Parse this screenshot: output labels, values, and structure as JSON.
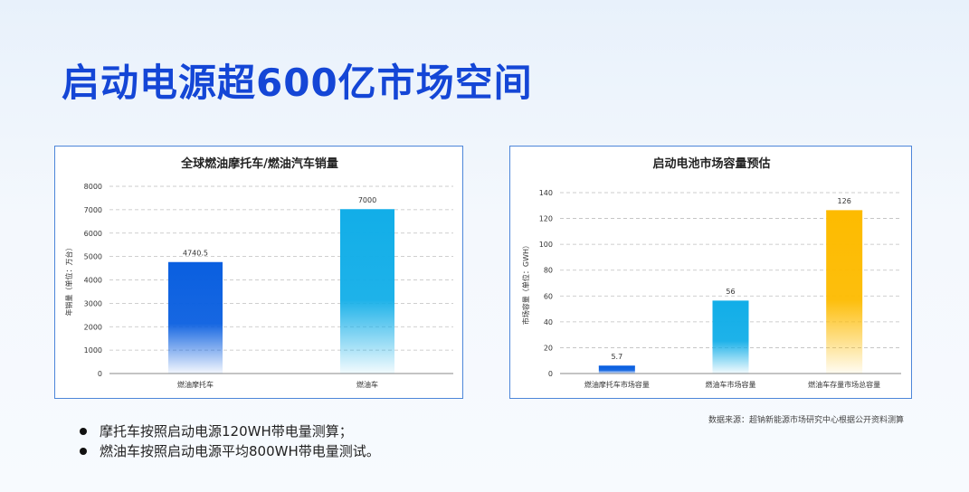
{
  "page_title": "启动电源超600亿市场空间",
  "source_note": "数据来源：超钠新能源市场研究中心根据公开资料测算",
  "bullets": [
    "摩托车按照启动电源120WH带电量测算；",
    "燃油车按照启动电源平均800WH带电量测试。"
  ],
  "chart_data": [
    {
      "type": "bar",
      "title": "全球燃油摩托车/燃油汽车销量",
      "ylabel": "年销量（单位：万台）",
      "xlabel": "",
      "categories": [
        "燃油摩托车",
        "燃油车"
      ],
      "values": [
        4740.5,
        7000
      ],
      "value_labels": [
        "4740.5",
        "7000"
      ],
      "ylim": [
        0,
        8000
      ],
      "yticks": [
        0,
        1000,
        2000,
        3000,
        4000,
        5000,
        6000,
        7000,
        8000
      ],
      "bar_colors": [
        "#0a5fe0",
        "#12aee8"
      ],
      "grid": true
    },
    {
      "type": "bar",
      "title": "启动电池市场容量预估",
      "ylabel": "市场容量（单位：GWH）",
      "xlabel": "",
      "categories": [
        "燃油摩托车市场容量",
        "燃油车市场容量",
        "燃油车存量市场总容量"
      ],
      "values": [
        5.7,
        56,
        126
      ],
      "value_labels": [
        "5.7",
        "56",
        "126"
      ],
      "ylim": [
        0,
        140
      ],
      "yticks": [
        0,
        20,
        40,
        60,
        80,
        100,
        120,
        140
      ],
      "bar_colors": [
        "#0a5fe0",
        "#12aee8",
        "#fdbb00"
      ],
      "grid": true
    }
  ]
}
